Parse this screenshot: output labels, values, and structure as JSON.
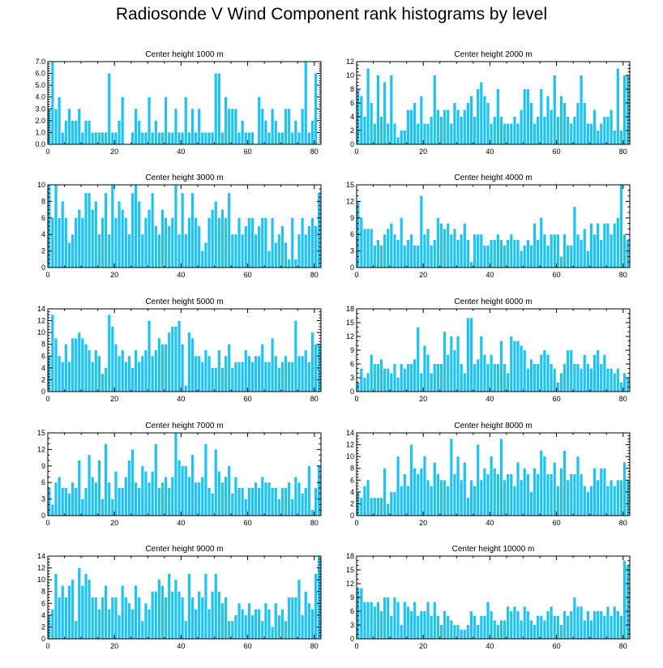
{
  "title": "Radiosonde V Wind Component rank histograms by level",
  "colors": {
    "bar": "#1ec3f2",
    "axis": "#000000",
    "background": "#ffffff"
  },
  "chart_data": [
    {
      "type": "bar",
      "title": "Center height 1000 m",
      "xlabel": "",
      "ylabel": "",
      "xlim": [
        0,
        82
      ],
      "ylim": [
        0,
        7
      ],
      "xticks": [
        "0",
        "20",
        "40",
        "60",
        "80"
      ],
      "yticks": [
        "0.0",
        "1.0",
        "2.0",
        "3.0",
        "4.0",
        "5.0",
        "6.0",
        "7.0"
      ],
      "values": [
        3,
        7,
        3,
        4,
        1,
        2,
        3,
        2,
        2,
        3,
        1,
        2,
        2,
        1,
        1,
        1,
        1,
        1,
        6,
        1,
        1,
        2,
        4,
        0,
        0,
        1,
        3,
        2,
        1,
        1,
        4,
        1,
        2,
        1,
        1,
        4,
        1,
        1,
        3,
        1,
        1,
        4,
        1,
        3,
        1,
        3,
        1,
        1,
        1,
        1,
        6,
        6,
        1,
        4,
        3,
        3,
        3,
        1,
        2,
        1,
        1,
        1,
        0,
        4,
        3,
        2,
        1,
        3,
        2,
        1,
        1,
        3,
        3,
        1,
        2,
        1,
        3,
        7,
        1,
        2,
        6
      ]
    },
    {
      "type": "bar",
      "title": "Center height 2000 m",
      "xlabel": "",
      "ylabel": "",
      "xlim": [
        0,
        82
      ],
      "ylim": [
        0,
        12
      ],
      "xticks": [
        "0",
        "20",
        "40",
        "60",
        "80"
      ],
      "yticks": [
        "0",
        "2",
        "4",
        "6",
        "8",
        "10",
        "12"
      ],
      "values": [
        8,
        7,
        4,
        11,
        6,
        3,
        10,
        4,
        9,
        3,
        10,
        3,
        1,
        2,
        2,
        5,
        5,
        6,
        3,
        7,
        3,
        3,
        4,
        10,
        5,
        4,
        5,
        5,
        3,
        6,
        5,
        4,
        5,
        6,
        7,
        4,
        8,
        9,
        7,
        6,
        3,
        4,
        8,
        4,
        3,
        3,
        3,
        4,
        3,
        5,
        8,
        8,
        6,
        3,
        4,
        8,
        4,
        7,
        5,
        10,
        4,
        7,
        6,
        4,
        3,
        4,
        6,
        10,
        6,
        3,
        3,
        5,
        2,
        3,
        4,
        4,
        5,
        2,
        11,
        2,
        10,
        10
      ]
    },
    {
      "type": "bar",
      "title": "Center height 3000 m",
      "xlabel": "",
      "ylabel": "",
      "xlim": [
        0,
        82
      ],
      "ylim": [
        0,
        10
      ],
      "xticks": [
        "0",
        "20",
        "40",
        "60",
        "80"
      ],
      "yticks": [
        "0",
        "2",
        "4",
        "6",
        "8",
        "10"
      ],
      "values": [
        10,
        6,
        10,
        6,
        8,
        6,
        3,
        4,
        6,
        7,
        6,
        9,
        9,
        7,
        8,
        4,
        6,
        9,
        4,
        10,
        6,
        8,
        7,
        6,
        4,
        9,
        10,
        8,
        4,
        6,
        7,
        9,
        5,
        4,
        7,
        6,
        5,
        6,
        10,
        4,
        9,
        4,
        6,
        9,
        6,
        5,
        2,
        3,
        6,
        7,
        8,
        6,
        7,
        6,
        9,
        4,
        4,
        6,
        4,
        5,
        6,
        6,
        4,
        5,
        6,
        6,
        2,
        6,
        3,
        4,
        5,
        3,
        1,
        6,
        1,
        4,
        6,
        4,
        5,
        6,
        5,
        9
      ]
    },
    {
      "type": "bar",
      "title": "Center height 4000 m",
      "xlabel": "",
      "ylabel": "",
      "xlim": [
        0,
        82
      ],
      "ylim": [
        0,
        15
      ],
      "xticks": [
        "0",
        "20",
        "40",
        "60",
        "80"
      ],
      "yticks": [
        "0",
        "3",
        "6",
        "9",
        "12",
        "15"
      ],
      "values": [
        12,
        9,
        7,
        7,
        7,
        4,
        5,
        4,
        6,
        7,
        8,
        6,
        5,
        9,
        4,
        5,
        6,
        4,
        4,
        13,
        6,
        7,
        4,
        5,
        9,
        8,
        7,
        8,
        6,
        7,
        5,
        6,
        8,
        5,
        1,
        6,
        6,
        6,
        4,
        4,
        5,
        5,
        6,
        5,
        4,
        5,
        6,
        5,
        5,
        3,
        4,
        5,
        4,
        8,
        5,
        9,
        6,
        4,
        6,
        6,
        6,
        2,
        6,
        4,
        4,
        11,
        6,
        5,
        7,
        3,
        8,
        6,
        8,
        5,
        8,
        8,
        6,
        8,
        9,
        15,
        6,
        5
      ]
    },
    {
      "type": "bar",
      "title": "Center height 5000 m",
      "xlabel": "",
      "ylabel": "",
      "xlim": [
        0,
        82
      ],
      "ylim": [
        0,
        14
      ],
      "xticks": [
        "0",
        "20",
        "40",
        "60",
        "80"
      ],
      "yticks": [
        "0",
        "2",
        "4",
        "6",
        "8",
        "10",
        "12",
        "14"
      ],
      "values": [
        6,
        13,
        9,
        6,
        5,
        8,
        5,
        9,
        9,
        10,
        9,
        8,
        7,
        5,
        7,
        6,
        3,
        4,
        13,
        11,
        8,
        6,
        7,
        5,
        6,
        4,
        7,
        5,
        6,
        7,
        12,
        6,
        7,
        9,
        8,
        8,
        10,
        11,
        11,
        12,
        8,
        1,
        10,
        9,
        6,
        6,
        5,
        7,
        6,
        4,
        4,
        7,
        4,
        6,
        8,
        4,
        5,
        5,
        5,
        7,
        6,
        5,
        6,
        6,
        8,
        5,
        5,
        9,
        6,
        4,
        5,
        6,
        5,
        5,
        12,
        6,
        6,
        7,
        5,
        10,
        8,
        8
      ]
    },
    {
      "type": "bar",
      "title": "Center height 6000 m",
      "xlabel": "",
      "ylabel": "",
      "xlim": [
        0,
        82
      ],
      "ylim": [
        0,
        18
      ],
      "xticks": [
        "0",
        "20",
        "40",
        "60",
        "80"
      ],
      "yticks": [
        "0",
        "3",
        "6",
        "9",
        "12",
        "15",
        "18"
      ],
      "values": [
        2,
        5,
        3,
        4,
        8,
        6,
        6,
        7,
        5,
        5,
        4,
        6,
        3,
        6,
        5,
        6,
        6,
        7,
        14,
        4,
        10,
        8,
        4,
        6,
        6,
        6,
        13,
        8,
        12,
        9,
        12,
        6,
        4,
        16,
        16,
        6,
        7,
        12,
        8,
        6,
        8,
        6,
        6,
        11,
        6,
        4,
        12,
        11,
        11,
        10,
        9,
        5,
        7,
        6,
        6,
        8,
        9,
        8,
        6,
        5,
        2,
        4,
        6,
        9,
        9,
        6,
        6,
        5,
        8,
        6,
        5,
        8,
        9,
        6,
        8,
        5,
        5,
        4,
        5,
        2,
        4,
        3
      ]
    },
    {
      "type": "bar",
      "title": "Center height 7000 m",
      "xlabel": "",
      "ylabel": "",
      "xlim": [
        0,
        82
      ],
      "ylim": [
        0,
        15
      ],
      "xticks": [
        "0",
        "20",
        "40",
        "60",
        "80"
      ],
      "yticks": [
        "0",
        "3",
        "6",
        "9",
        "12",
        "15"
      ],
      "values": [
        5,
        2,
        6,
        7,
        5,
        5,
        4,
        6,
        5,
        10,
        3,
        5,
        11,
        7,
        6,
        10,
        3,
        13,
        6,
        3,
        8,
        5,
        5,
        7,
        10,
        12,
        6,
        5,
        9,
        8,
        6,
        8,
        13,
        5,
        6,
        7,
        5,
        7,
        15,
        10,
        9,
        9,
        7,
        11,
        6,
        6,
        7,
        13,
        5,
        4,
        12,
        8,
        6,
        7,
        9,
        4,
        7,
        5,
        5,
        3,
        5,
        5,
        6,
        5,
        7,
        6,
        6,
        5,
        5,
        3,
        5,
        5,
        6,
        3,
        7,
        6,
        4,
        5,
        9,
        1,
        5,
        9
      ]
    },
    {
      "type": "bar",
      "title": "Center height 8000 m",
      "xlabel": "",
      "ylabel": "",
      "xlim": [
        0,
        82
      ],
      "ylim": [
        0,
        14
      ],
      "xticks": [
        "0",
        "20",
        "40",
        "60",
        "80"
      ],
      "yticks": [
        "0",
        "2",
        "4",
        "6",
        "8",
        "10",
        "12",
        "14"
      ],
      "values": [
        4,
        3,
        5,
        6,
        3,
        3,
        3,
        3,
        8,
        2,
        4,
        4,
        10,
        5,
        7,
        5,
        12,
        8,
        7,
        8,
        10,
        6,
        5,
        9,
        7,
        6,
        6,
        5,
        13,
        7,
        10,
        6,
        9,
        3,
        6,
        5,
        12,
        6,
        8,
        7,
        10,
        8,
        7,
        13,
        6,
        7,
        7,
        5,
        9,
        6,
        8,
        7,
        4,
        8,
        7,
        11,
        10,
        7,
        7,
        9,
        5,
        8,
        11,
        6,
        7,
        7,
        10,
        7,
        5,
        4,
        5,
        8,
        6,
        8,
        8,
        5,
        6,
        5,
        6,
        6,
        9,
        6
      ]
    },
    {
      "type": "bar",
      "title": "Center height 9000 m",
      "xlabel": "",
      "ylabel": "",
      "xlim": [
        0,
        82
      ],
      "ylim": [
        0,
        14
      ],
      "xticks": [
        "0",
        "20",
        "40",
        "60",
        "80"
      ],
      "yticks": [
        "0",
        "2",
        "4",
        "6",
        "8",
        "10",
        "12",
        "14"
      ],
      "values": [
        4,
        5,
        11,
        7,
        9,
        7,
        9,
        10,
        3,
        12,
        9,
        11,
        10,
        7,
        7,
        5,
        7,
        9,
        5,
        7,
        7,
        4,
        9,
        7,
        6,
        5,
        9,
        7,
        3,
        6,
        5,
        8,
        8,
        10,
        9,
        7,
        11,
        8,
        10,
        8,
        7,
        3,
        11,
        7,
        5,
        8,
        7,
        11,
        5,
        8,
        11,
        8,
        6,
        7,
        3,
        3,
        4,
        6,
        5,
        4,
        6,
        4,
        5,
        5,
        3,
        6,
        5,
        2,
        6,
        4,
        5,
        3,
        7,
        7,
        7,
        10,
        4,
        8,
        6,
        5,
        11,
        14
      ]
    },
    {
      "type": "bar",
      "title": "Center height 10000 m",
      "xlabel": "",
      "ylabel": "",
      "xlim": [
        0,
        82
      ],
      "ylim": [
        0,
        18
      ],
      "xticks": [
        "0",
        "20",
        "40",
        "60",
        "80"
      ],
      "yticks": [
        "0",
        "3",
        "6",
        "9",
        "12",
        "15",
        "18"
      ],
      "values": [
        11,
        11,
        8,
        8,
        8,
        7,
        8,
        6,
        9,
        9,
        5,
        9,
        8,
        3,
        8,
        7,
        6,
        8,
        5,
        6,
        6,
        8,
        5,
        8,
        5,
        3,
        6,
        5,
        4,
        3,
        3,
        2,
        2,
        3,
        6,
        5,
        3,
        5,
        5,
        8,
        6,
        4,
        3,
        4,
        4,
        7,
        6,
        7,
        6,
        4,
        7,
        6,
        4,
        3,
        5,
        5,
        4,
        6,
        7,
        5,
        5,
        3,
        6,
        5,
        6,
        9,
        7,
        7,
        4,
        6,
        4,
        6,
        6,
        6,
        5,
        7,
        5,
        7,
        6,
        5,
        17,
        16
      ]
    }
  ]
}
